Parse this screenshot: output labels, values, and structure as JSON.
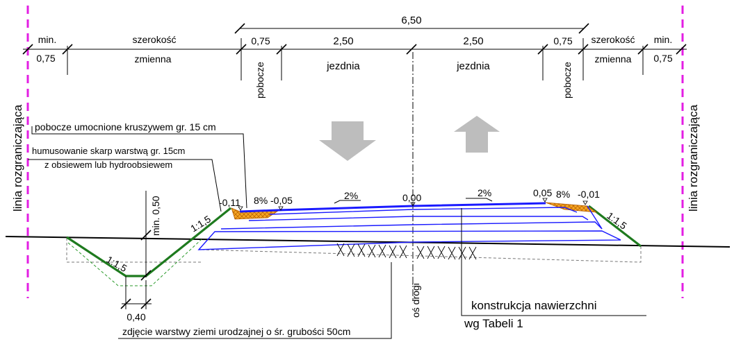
{
  "dimensions": {
    "total": "6,50",
    "min_left": "min.",
    "min_left_value": "0,75",
    "variable_left_top": "szerokość",
    "variable_left_bottom": "zmienna",
    "shoulder_left_value": "0,75",
    "shoulder_left_label": "pobocze",
    "lane_left_value": "2,50",
    "lane_left_label": "jezdnia",
    "lane_right_value": "2,50",
    "lane_right_label": "jezdnia",
    "shoulder_right_value": "0,75",
    "shoulder_right_label": "pobocze",
    "variable_right_top": "szerokość",
    "variable_right_bottom": "zmienna",
    "min_right": "min.",
    "min_right_value": "0,75"
  },
  "boundary_label_left": "linia rozgraniczająca",
  "boundary_label_right": "linia rozgraniczająca",
  "traffic_arrows": [
    "down",
    "up"
  ],
  "notes": {
    "shoulder_reinforced": "pobocze umocnione kruszywem gr. 15 cm",
    "humus_line1": "humusowanie skarp warstwą gr. 15cm",
    "humus_line2": "z obsiewem lub hydroobsiewem",
    "topsoil": "zdjęcie warstwy ziemi urodzajnej o śr. grubości 50cm",
    "construction_line1": "konstrukcja nawierzchni",
    "construction_line2": "wg Tabeli 1"
  },
  "levels": {
    "left_edge": "-0,11",
    "left_shoulder_slope": "8%",
    "left_shoulder_level": "-0,05",
    "left_lane_slope": "2%",
    "axis_level": "0,00",
    "right_lane_slope": "2%",
    "right_shoulder_level": "0,05",
    "right_shoulder_slope": "8%",
    "right_edge": "-0,01"
  },
  "slopes": {
    "ditch": "1:1,5",
    "embankment_left": "1:1,5",
    "embankment_right": "1:1,5"
  },
  "ditch": {
    "min_depth": "min. 0,50",
    "bottom_width": "0,40"
  },
  "axis_label": "oś drogi",
  "colors": {
    "boundary": "#e31ee3",
    "slope_humus": "#1e7a1e",
    "pavement": "#1a1aff",
    "shoulder_fill": "#f5a623",
    "arrow": "#bdbdbd"
  }
}
